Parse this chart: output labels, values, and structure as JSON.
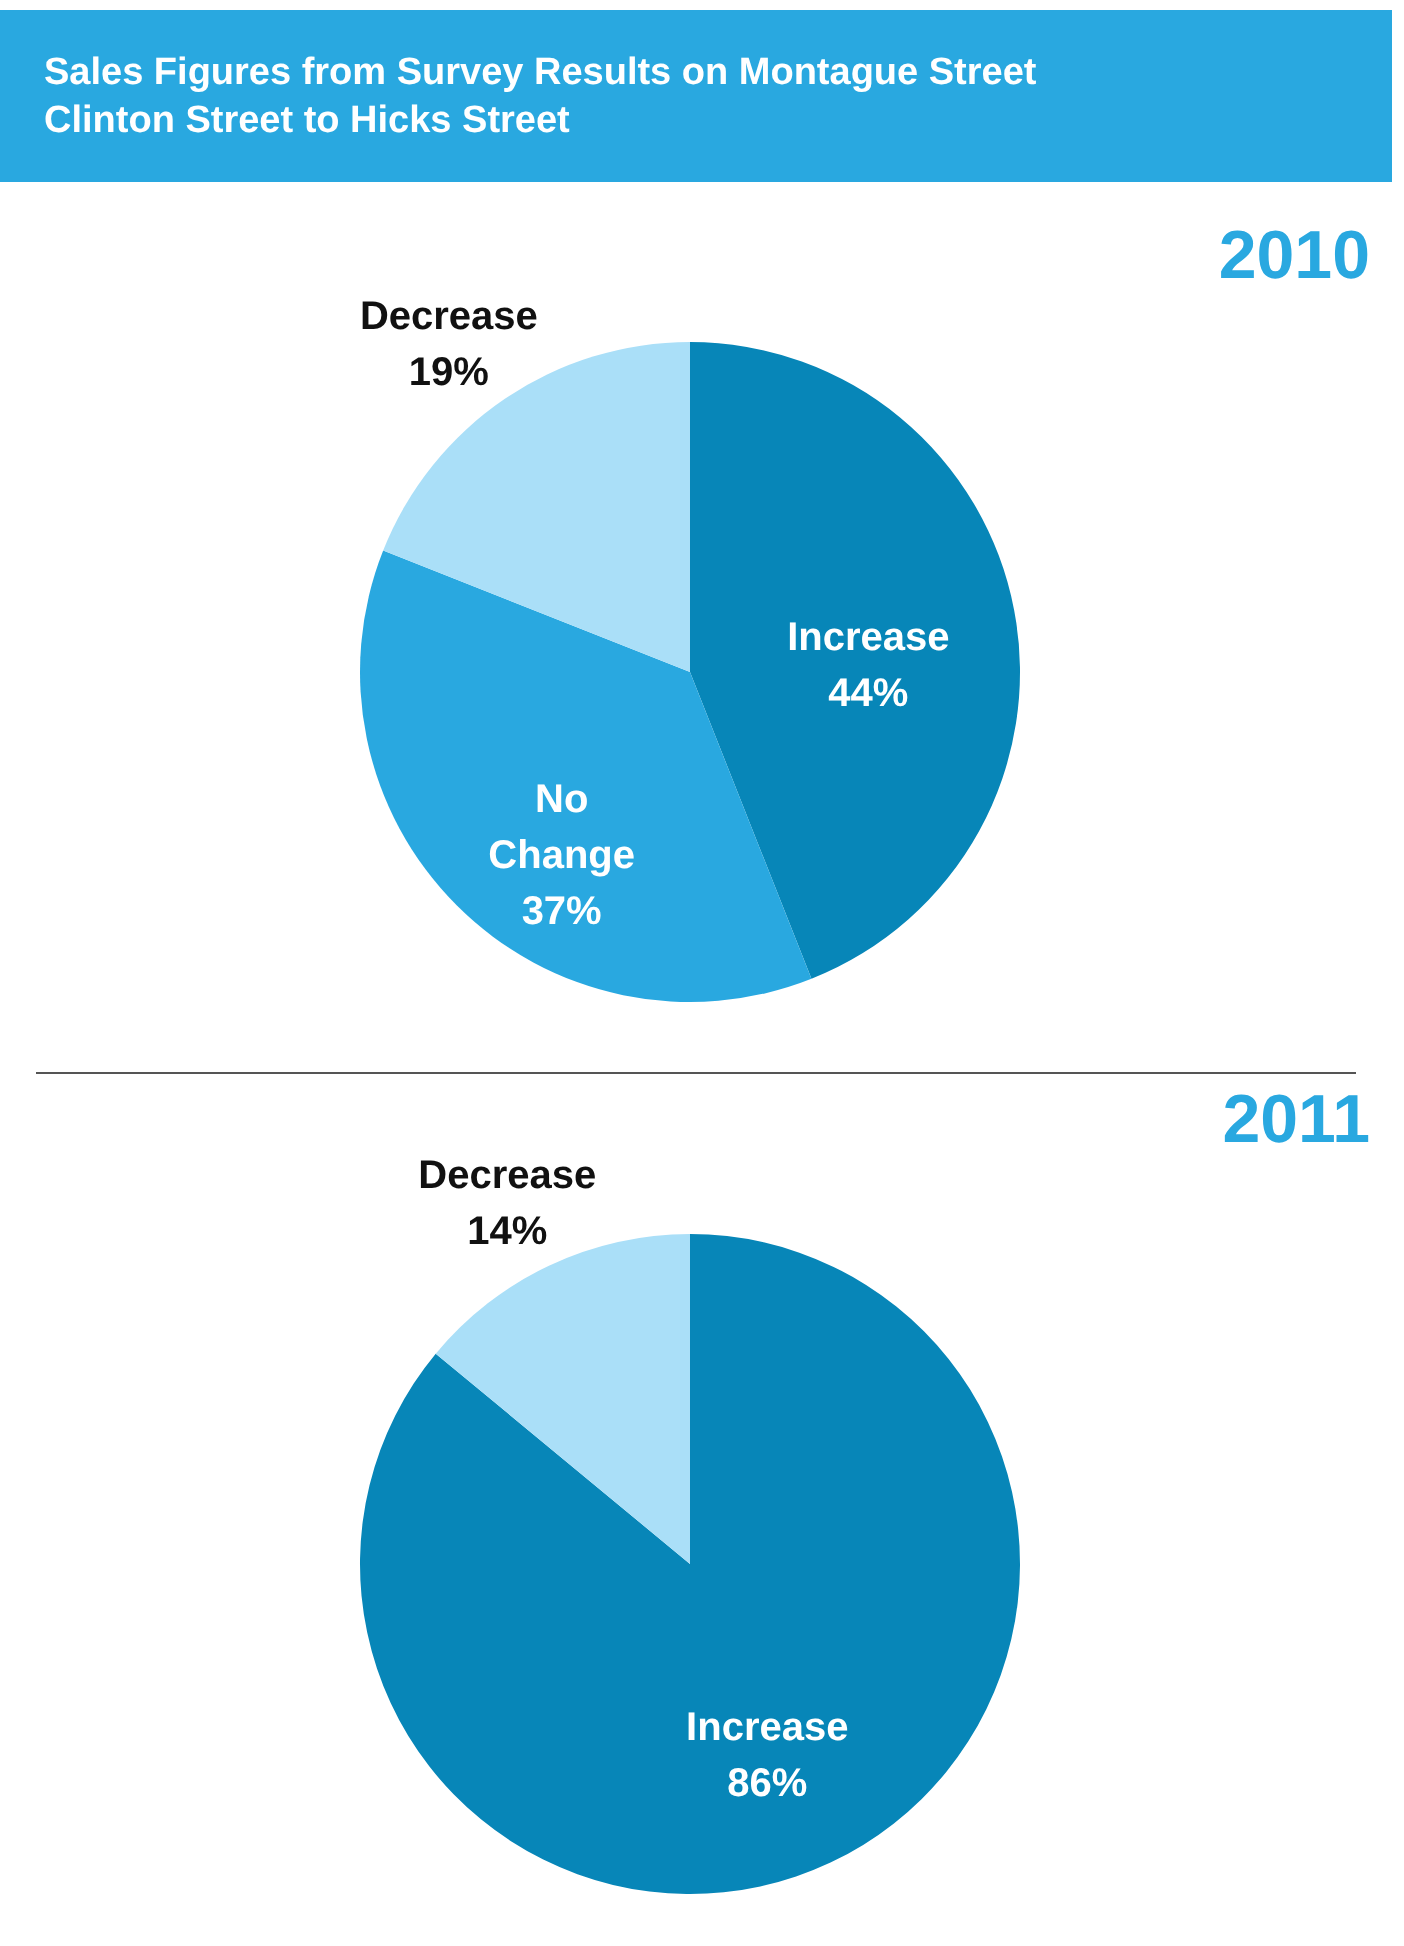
{
  "chart_data": [
    {
      "type": "pie",
      "title": "2010",
      "annotations": [
        "Sales Figures from Survey Results on Montague Street Clinton Street to Hicks Street"
      ],
      "categories": [
        "Increase",
        "No Change",
        "Decrease"
      ],
      "values": [
        44,
        37,
        19
      ],
      "value_labels": [
        "44%",
        "37%",
        "19%"
      ],
      "colors": [
        "#0786b8",
        "#29a8e0",
        "#aadff8"
      ],
      "legend": false
    },
    {
      "type": "pie",
      "title": "2011",
      "categories": [
        "Increase",
        "Decrease"
      ],
      "values": [
        86,
        14
      ],
      "value_labels": [
        "86%",
        "14%"
      ],
      "colors": [
        "#0786b8",
        "#aadff8"
      ],
      "legend": false
    }
  ]
}
